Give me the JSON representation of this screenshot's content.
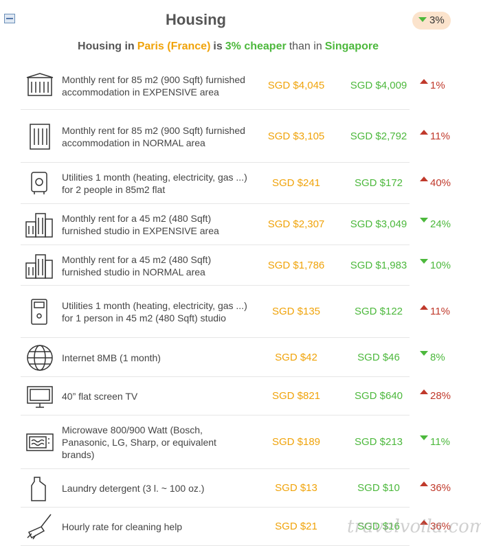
{
  "header": {
    "title": "Housing",
    "badge": "3%"
  },
  "summary": [
    "Housing in",
    "Paris (France)",
    "is",
    "3% cheaper",
    "than in",
    "Singapore"
  ],
  "rows": [
    {
      "description": "Monthly rent for 85 m2 (900 Sqft) furnished accommodation in EXPENSIVE area",
      "paris": "SGD $4,045",
      "singapore": "SGD $4,009",
      "change": "1%",
      "direction": "up"
    },
    {
      "description": "Monthly rent for 85 m2 (900 Sqft) furnished accommodation in NORMAL area",
      "paris": "SGD $3,105",
      "singapore": "SGD $2,792",
      "change": "11%",
      "direction": "up"
    },
    {
      "description": "Utilities 1 month (heating, electricity, gas ...) for 2 people in 85m2 flat",
      "paris": "SGD $241",
      "singapore": "SGD $172",
      "change": "40%",
      "direction": "up"
    },
    {
      "description": "Monthly rent for a 45 m2 (480 Sqft) furnished studio in EXPENSIVE area",
      "paris": "SGD $2,307",
      "singapore": "SGD $3,049",
      "change": "24%",
      "direction": "down"
    },
    {
      "description": "Monthly rent for a 45 m2 (480 Sqft) furnished studio in NORMAL area",
      "paris": "SGD $1,786",
      "singapore": "SGD $1,983",
      "change": "10%",
      "direction": "down"
    },
    {
      "description": "Utilities 1 month (heating, electricity, gas ...) for 1 person in 45 m2 (480 Sqft) studio",
      "paris": "SGD $135",
      "singapore": "SGD $122",
      "change": "11%",
      "direction": "up"
    },
    {
      "description": "Internet 8MB (1 month)",
      "paris": "SGD $42",
      "singapore": "SGD $46",
      "change": "8%",
      "direction": "down"
    },
    {
      "description": "40” flat screen TV",
      "paris": "SGD $821",
      "singapore": "SGD $640",
      "change": "28%",
      "direction": "up"
    },
    {
      "description": "Microwave 800/900 Watt (Bosch, Panasonic, LG, Sharp, or equivalent brands)",
      "paris": "SGD $189",
      "singapore": "SGD $213",
      "change": "11%",
      "direction": "down"
    },
    {
      "description": "Laundry detergent (3 l. ~ 100 oz.)",
      "paris": "SGD $13",
      "singapore": "SGD $10",
      "change": "36%",
      "direction": "up"
    },
    {
      "description": "Hourly rate for cleaning help",
      "paris": "SGD $21",
      "singapore": "SGD $16",
      "change": "36%",
      "direction": "up"
    }
  ],
  "watermark": "travelvoila.com"
}
